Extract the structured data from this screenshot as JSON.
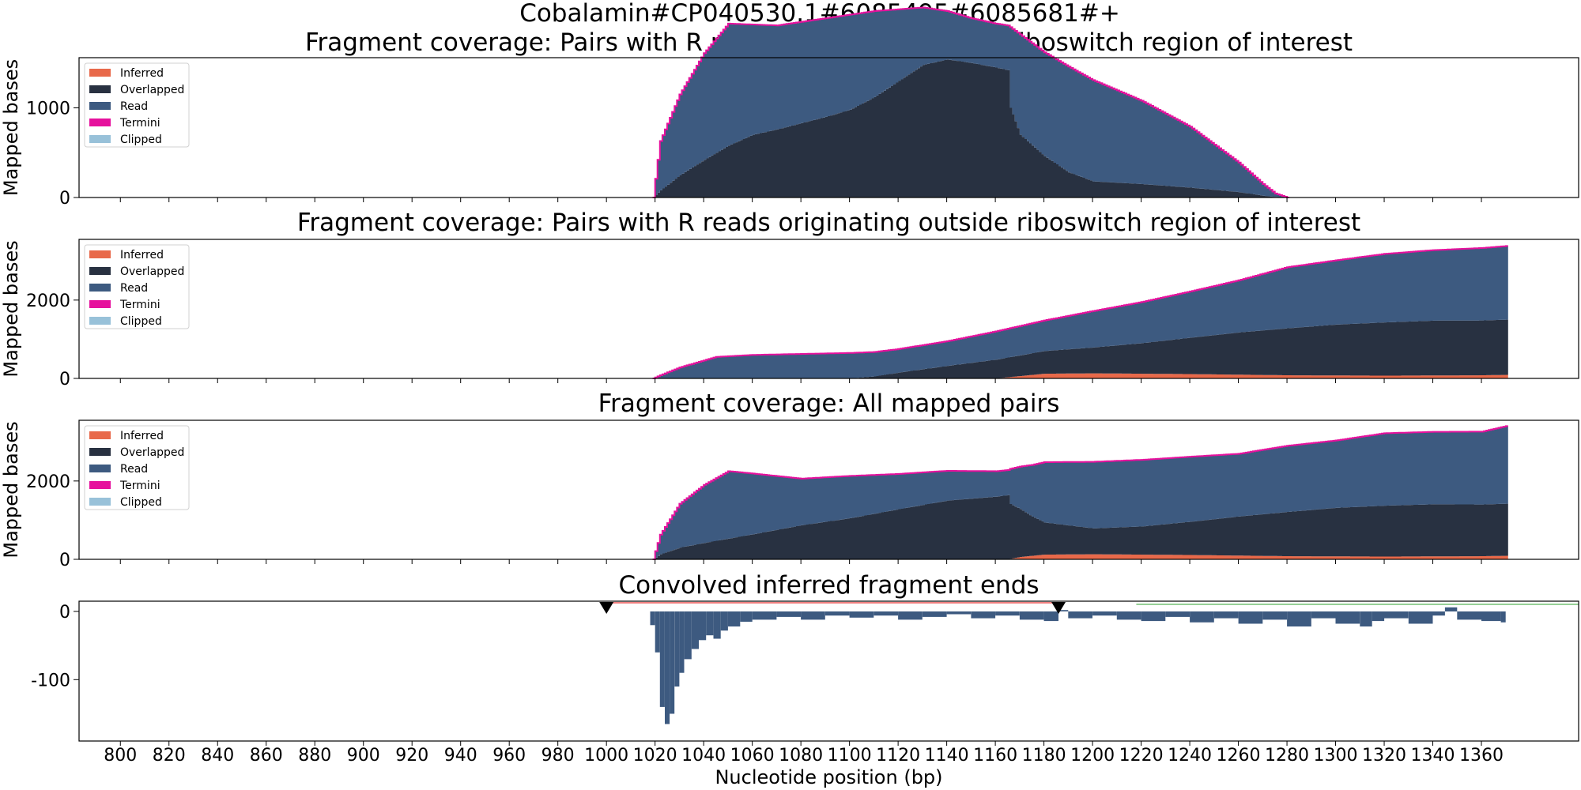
{
  "figure_title": "Cobalamin#CP040530.1#6085495#6085681#+",
  "colors": {
    "inferred": "#e8694a",
    "overlapped": "#283141",
    "read": "#3d5a80",
    "termini": "#e6119d",
    "clipped": "#98c1d9",
    "marker_line": "#f08080",
    "ref_line": "#2ca02c"
  },
  "legend": [
    "Inferred",
    "Overlapped",
    "Read",
    "Termini",
    "Clipped"
  ],
  "chart_data": [
    {
      "type": "area",
      "title": "Fragment coverage: Pairs with R reads originating within riboswitch region of interest",
      "xlabel": "",
      "ylabel": "Mapped bases",
      "xlim": [
        783,
        1400
      ],
      "ylim": [
        0,
        1560
      ],
      "yticks": [
        0,
        1000
      ],
      "stacked": true,
      "series": [
        {
          "name": "Overlapped",
          "x": [
            1019,
            1022,
            1030,
            1040,
            1050,
            1060,
            1070,
            1080,
            1090,
            1100,
            1110,
            1120,
            1130,
            1140,
            1150,
            1160,
            1165,
            1166,
            1170,
            1180,
            1190,
            1200,
            1220,
            1240,
            1260,
            1270,
            1275,
            1280
          ],
          "values": [
            0,
            80,
            250,
            420,
            580,
            700,
            760,
            830,
            900,
            980,
            1120,
            1300,
            1480,
            1540,
            1500,
            1450,
            1420,
            1000,
            700,
            460,
            280,
            180,
            150,
            110,
            60,
            20,
            5,
            0
          ]
        },
        {
          "name": "Read",
          "x": [
            1019,
            1022,
            1030,
            1040,
            1050,
            1060,
            1070,
            1080,
            1090,
            1100,
            1110,
            1120,
            1130,
            1140,
            1150,
            1160,
            1165,
            1166,
            1170,
            1180,
            1190,
            1200,
            1220,
            1240,
            1260,
            1270,
            1275,
            1280
          ],
          "values": [
            0,
            550,
            900,
            1190,
            1360,
            1230,
            1160,
            1130,
            1100,
            1060,
            960,
            800,
            640,
            540,
            500,
            490,
            500,
            900,
            1120,
            1160,
            1180,
            1130,
            930,
            680,
            330,
            130,
            40,
            0
          ]
        },
        {
          "name": "Inferred",
          "x": [
            1019,
            1280
          ],
          "values": [
            0,
            0
          ]
        }
      ]
    },
    {
      "type": "area",
      "title": "Fragment coverage: Pairs with R reads originating outside riboswitch region of interest",
      "xlabel": "",
      "ylabel": "Mapped bases",
      "xlim": [
        783,
        1400
      ],
      "ylim": [
        0,
        3550
      ],
      "yticks": [
        0,
        2000
      ],
      "stacked": true,
      "series": [
        {
          "name": "Inferred",
          "x": [
            1019,
            1160,
            1170,
            1180,
            1200,
            1240,
            1280,
            1320,
            1360,
            1370
          ],
          "values": [
            0,
            0,
            60,
            120,
            130,
            110,
            80,
            70,
            80,
            90
          ]
        },
        {
          "name": "Overlapped",
          "x": [
            1019,
            1100,
            1110,
            1120,
            1140,
            1160,
            1180,
            1200,
            1220,
            1240,
            1260,
            1280,
            1300,
            1320,
            1340,
            1360,
            1370
          ],
          "values": [
            0,
            0,
            50,
            150,
            320,
            480,
            580,
            660,
            780,
            930,
            1080,
            1200,
            1300,
            1360,
            1400,
            1400,
            1410
          ]
        },
        {
          "name": "Read",
          "x": [
            1019,
            1022,
            1030,
            1045,
            1060,
            1100,
            1120,
            1140,
            1160,
            1180,
            1200,
            1220,
            1240,
            1260,
            1280,
            1300,
            1320,
            1340,
            1360,
            1370
          ],
          "values": [
            0,
            80,
            280,
            550,
            600,
            650,
            600,
            630,
            720,
            780,
            930,
            1050,
            1180,
            1330,
            1560,
            1640,
            1750,
            1800,
            1850,
            1880
          ]
        }
      ]
    },
    {
      "type": "area",
      "title": "Fragment coverage: All mapped pairs",
      "xlabel": "",
      "ylabel": "Mapped bases",
      "xlim": [
        783,
        1400
      ],
      "ylim": [
        0,
        3550
      ],
      "yticks": [
        0,
        2000
      ],
      "stacked": true,
      "series": [
        {
          "name": "Inferred",
          "x": [
            1019,
            1165,
            1170,
            1180,
            1200,
            1240,
            1280,
            1320,
            1360,
            1370
          ],
          "values": [
            0,
            0,
            60,
            120,
            130,
            110,
            80,
            70,
            80,
            90
          ]
        },
        {
          "name": "Overlapped",
          "x": [
            1019,
            1022,
            1030,
            1040,
            1060,
            1080,
            1100,
            1120,
            1140,
            1160,
            1165,
            1166,
            1175,
            1180,
            1200,
            1220,
            1240,
            1260,
            1280,
            1300,
            1320,
            1340,
            1360,
            1370
          ],
          "values": [
            0,
            130,
            300,
            420,
            640,
            870,
            1050,
            1280,
            1500,
            1600,
            1640,
            1400,
            1000,
            820,
            660,
            720,
            850,
            1000,
            1130,
            1240,
            1300,
            1330,
            1320,
            1330
          ]
        },
        {
          "name": "Read",
          "x": [
            1019,
            1022,
            1030,
            1040,
            1050,
            1060,
            1080,
            1100,
            1120,
            1140,
            1160,
            1165,
            1166,
            1175,
            1180,
            1200,
            1220,
            1240,
            1260,
            1280,
            1300,
            1320,
            1340,
            1360,
            1370
          ],
          "values": [
            0,
            500,
            1120,
            1480,
            1720,
            1550,
            1190,
            1080,
            900,
            760,
            650,
            640,
            900,
            1320,
            1540,
            1700,
            1700,
            1660,
            1600,
            1690,
            1720,
            1850,
            1850,
            1860,
            1980
          ]
        }
      ]
    },
    {
      "type": "bar",
      "title": "Convolved inferred fragment ends",
      "xlabel": "Nucleotide position (bp)",
      "ylabel": "",
      "xlim": [
        783,
        1400
      ],
      "ylim": [
        -190,
        15
      ],
      "yticks": [
        0,
        -100
      ],
      "xticks": [
        800,
        820,
        840,
        860,
        880,
        900,
        920,
        940,
        960,
        980,
        1000,
        1020,
        1040,
        1060,
        1080,
        1100,
        1120,
        1140,
        1160,
        1180,
        1200,
        1220,
        1240,
        1260,
        1280,
        1300,
        1320,
        1340,
        1360
      ],
      "markers": [
        1000,
        1186
      ],
      "x": [
        1018,
        1020,
        1022,
        1024,
        1026,
        1028,
        1030,
        1032,
        1035,
        1038,
        1041,
        1044,
        1047,
        1050,
        1055,
        1060,
        1070,
        1080,
        1090,
        1100,
        1110,
        1120,
        1130,
        1140,
        1150,
        1160,
        1170,
        1180,
        1186,
        1190,
        1200,
        1210,
        1220,
        1230,
        1240,
        1250,
        1260,
        1270,
        1280,
        1290,
        1300,
        1310,
        1315,
        1320,
        1330,
        1340,
        1345,
        1350,
        1360,
        1368
      ],
      "values": [
        -20,
        -60,
        -140,
        -165,
        -150,
        -110,
        -90,
        -70,
        -55,
        -42,
        -35,
        -40,
        -28,
        -22,
        -15,
        -12,
        -8,
        -12,
        -6,
        -9,
        -6,
        -12,
        -8,
        -4,
        -10,
        -6,
        -12,
        -14,
        2,
        -10,
        -6,
        -12,
        -14,
        -8,
        -16,
        -10,
        -18,
        -12,
        -22,
        -10,
        -18,
        -22,
        -14,
        -10,
        -18,
        -6,
        6,
        -12,
        -14,
        -16
      ]
    }
  ]
}
